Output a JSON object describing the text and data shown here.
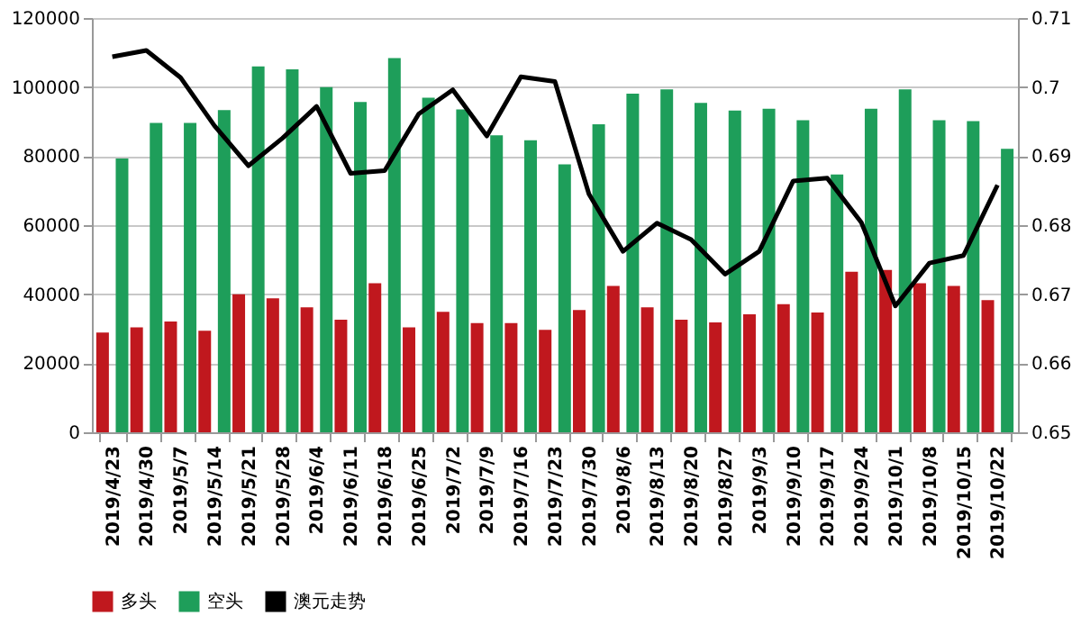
{
  "chart_data": {
    "type": "bar",
    "categories": [
      "2019/4/23",
      "2019/4/30",
      "2019/5/7",
      "2019/5/14",
      "2019/5/21",
      "2019/5/28",
      "2019/6/4",
      "2019/6/11",
      "2019/6/18",
      "2019/6/25",
      "2019/7/2",
      "2019/7/9",
      "2019/7/16",
      "2019/7/23",
      "2019/7/30",
      "2019/8/6",
      "2019/8/13",
      "2019/8/20",
      "2019/8/27",
      "2019/9/3",
      "2019/9/10",
      "2019/9/17",
      "2019/9/24",
      "2019/10/1",
      "2019/10/8",
      "2019/10/15",
      "2019/10/22"
    ],
    "series": [
      {
        "name": "多头",
        "color": "#c0181e",
        "values": [
          28900,
          30400,
          32100,
          29400,
          40000,
          38800,
          36200,
          32600,
          43200,
          30400,
          34900,
          31600,
          31600,
          29700,
          35400,
          42400,
          36200,
          32600,
          31800,
          34200,
          37100,
          34700,
          46500,
          47000,
          43200,
          42400,
          38300
        ]
      },
      {
        "name": "空头",
        "color": "#1e9e5a",
        "values": [
          79300,
          89600,
          89600,
          93300,
          106000,
          105100,
          100000,
          95700,
          108400,
          96900,
          93500,
          86000,
          84600,
          77600,
          89200,
          98100,
          99300,
          95400,
          93200,
          93700,
          90400,
          74700,
          93700,
          99300,
          90400,
          90100,
          82100
        ]
      },
      {
        "name": "澳元走势",
        "color": "#000000",
        "type": "line",
        "axis": "y2",
        "values": [
          0.7044,
          0.7053,
          0.7014,
          0.6944,
          0.6886,
          0.6926,
          0.6972,
          0.6875,
          0.6879,
          0.6961,
          0.6996,
          0.6929,
          0.7015,
          0.7008,
          0.6845,
          0.6762,
          0.6803,
          0.6779,
          0.6729,
          0.6762,
          0.6864,
          0.6868,
          0.6804,
          0.6683,
          0.6745,
          0.6756,
          0.6858
        ]
      }
    ],
    "ylim": [
      0,
      120000
    ],
    "yticks": [
      0,
      20000,
      40000,
      60000,
      80000,
      100000,
      120000
    ],
    "y2lim": [
      0.65,
      0.71
    ],
    "y2ticks": [
      0.65,
      0.66,
      0.67,
      0.68,
      0.69,
      0.7,
      0.71
    ],
    "grid": "y",
    "legend": "bottom",
    "marker": "none",
    "line_style": "solid"
  }
}
